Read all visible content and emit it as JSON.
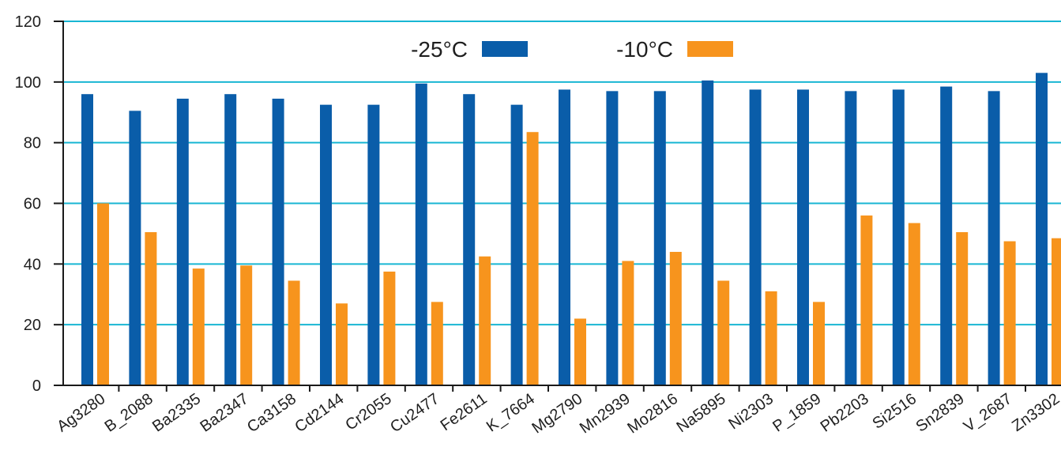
{
  "chart_data": {
    "type": "bar",
    "title": "",
    "xlabel": "",
    "ylabel": "",
    "ylim": [
      0,
      120
    ],
    "yticks": [
      0,
      20,
      40,
      60,
      80,
      100,
      120
    ],
    "grid": true,
    "legend_position": "top-center",
    "categories": [
      "Ag3280",
      "B_2088",
      "Ba2335",
      "Ba2347",
      "Ca3158",
      "Cd2144",
      "Cr2055",
      "Cu2477",
      "Fe2611",
      "K_7664",
      "Mg2790",
      "Mn2939",
      "Mo2816",
      "Na5895",
      "Ni2303",
      "P_1859",
      "Pb2203",
      "Si2516",
      "Sn2839",
      "V_2687",
      "Zn3302"
    ],
    "series": [
      {
        "name": "-25°C",
        "color": "#0a5da9",
        "values": [
          96,
          90.5,
          94.5,
          96,
          94.5,
          92.5,
          92.5,
          99.5,
          96,
          92.5,
          97.5,
          97,
          97,
          100.5,
          97.5,
          97.5,
          97,
          97.5,
          98.5,
          97,
          103
        ]
      },
      {
        "name": "-10°C",
        "color": "#f7941d",
        "values": [
          60,
          50.5,
          38.5,
          39.5,
          34.5,
          27,
          37.5,
          27.5,
          42.5,
          83.5,
          22,
          41,
          44,
          34.5,
          31,
          27.5,
          56,
          53.5,
          50.5,
          47.5,
          48.5
        ]
      }
    ],
    "colors": {
      "grid": "#18b6d3",
      "axis": "#1a1a1a"
    }
  }
}
